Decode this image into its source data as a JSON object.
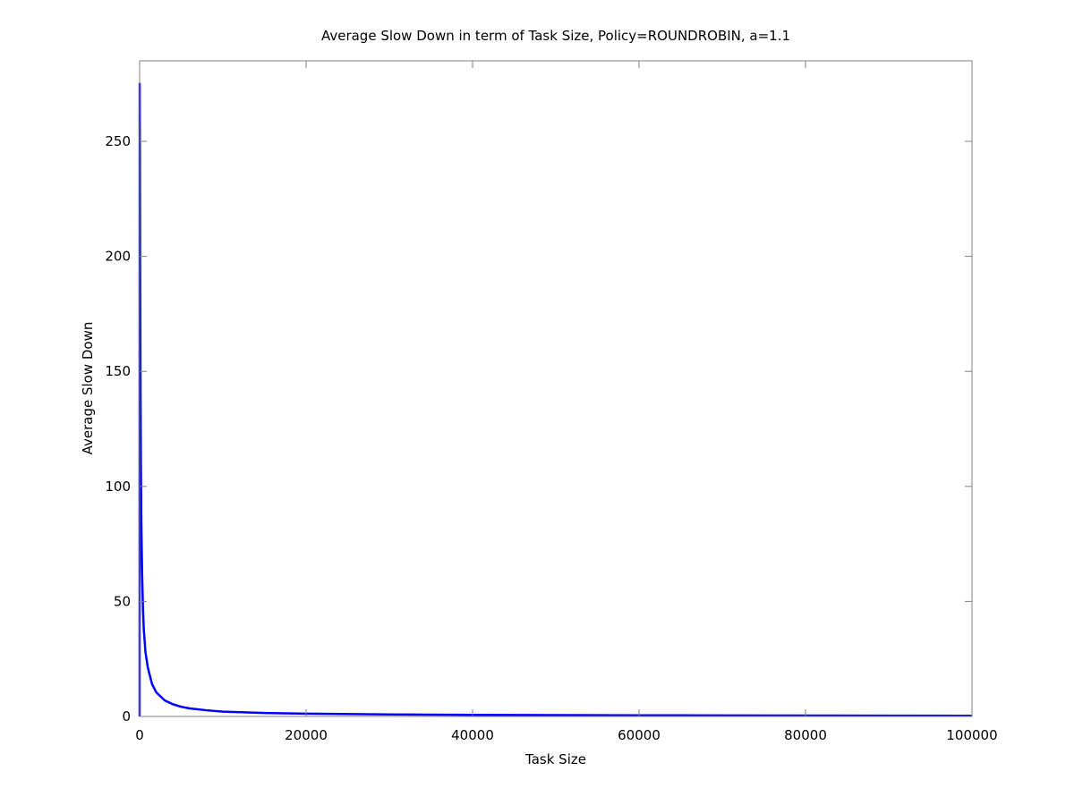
{
  "chart_data": {
    "type": "line",
    "title": "Average Slow Down in term of Task Size, Policy=ROUNDROBIN, a=1.1",
    "xlabel": "Task Size",
    "ylabel": "Average Slow Down",
    "xlim": [
      0,
      100000
    ],
    "ylim": [
      0,
      285
    ],
    "xticks": [
      0,
      20000,
      40000,
      60000,
      80000,
      100000
    ],
    "xtick_labels": [
      "0",
      "20000",
      "40000",
      "60000",
      "80000",
      "100000"
    ],
    "yticks": [
      0,
      50,
      100,
      150,
      200,
      250
    ],
    "ytick_labels": [
      "0",
      "50",
      "100",
      "150",
      "200",
      "250"
    ],
    "grid": false,
    "legend": "none",
    "series": [
      {
        "color": "#0000ff",
        "x": [
          0,
          10,
          30,
          60,
          100,
          150,
          200,
          300,
          400,
          500,
          700,
          1000,
          1500,
          2000,
          3000,
          4000,
          5000,
          6000,
          8000,
          10000,
          15000,
          20000,
          30000,
          40000,
          50000,
          60000,
          70000,
          80000,
          90000,
          100000
        ],
        "y": [
          0,
          275,
          250,
          200,
          150,
          110,
          85,
          62,
          47,
          38,
          28,
          21,
          14,
          10.5,
          7,
          5.3,
          4.2,
          3.5,
          2.7,
          2.1,
          1.5,
          1.2,
          0.9,
          0.7,
          0.6,
          0.5,
          0.45,
          0.4,
          0.35,
          0.3
        ]
      }
    ]
  }
}
